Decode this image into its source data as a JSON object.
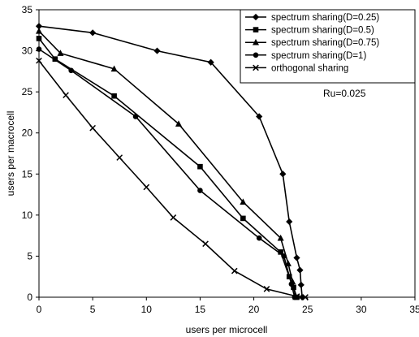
{
  "chart_data": {
    "type": "line",
    "title": "",
    "xlabel": "users per microcell",
    "ylabel": "users per macrocell",
    "xlim": [
      0,
      35
    ],
    "ylim": [
      0,
      35
    ],
    "xticks": [
      0,
      5,
      10,
      15,
      20,
      25,
      30,
      35
    ],
    "yticks": [
      0,
      5,
      10,
      15,
      20,
      25,
      30,
      35
    ],
    "grid": false,
    "legend_position": "top-right",
    "annotation": "Ru=0.025",
    "series": [
      {
        "name": "spectrum sharing(D=0.25)",
        "marker": "diamond",
        "x": [
          0,
          5,
          11,
          16,
          20.5,
          22.7,
          23.3,
          24.0,
          24.3,
          24.4,
          24.5
        ],
        "y": [
          33,
          32.2,
          30,
          28.6,
          22,
          15,
          9.2,
          4.8,
          3.3,
          1.5,
          0
        ]
      },
      {
        "name": "spectrum sharing(D=0.5)",
        "marker": "square",
        "x": [
          0,
          1.5,
          7,
          15,
          19,
          22.5,
          23.3,
          23.7,
          24.0
        ],
        "y": [
          31.5,
          29,
          24.5,
          15.9,
          9.6,
          5.5,
          2.5,
          1.2,
          0
        ]
      },
      {
        "name": "spectrum sharing(D=0.75)",
        "marker": "triangle",
        "x": [
          0,
          2,
          7,
          13,
          19,
          22.5,
          23.2,
          23.6,
          23.9
        ],
        "y": [
          32.4,
          29.7,
          27.8,
          21.1,
          11.6,
          7.2,
          4.1,
          1.9,
          0
        ]
      },
      {
        "name": "spectrum sharing(D=1)",
        "marker": "circle",
        "x": [
          0,
          3,
          9,
          15,
          20.5,
          22.8,
          23.5,
          23.8
        ],
        "y": [
          30.2,
          27.6,
          22,
          13,
          7.2,
          5.0,
          1.6,
          0
        ]
      },
      {
        "name": "orthogonal sharing",
        "marker": "x",
        "x": [
          0,
          2.5,
          5,
          7.5,
          10,
          12.5,
          15.5,
          18.2,
          21.2,
          24.0,
          24.8
        ],
        "y": [
          28.8,
          24.6,
          20.6,
          17.0,
          13.4,
          9.7,
          6.5,
          3.2,
          1.0,
          0.1,
          0
        ]
      }
    ]
  }
}
